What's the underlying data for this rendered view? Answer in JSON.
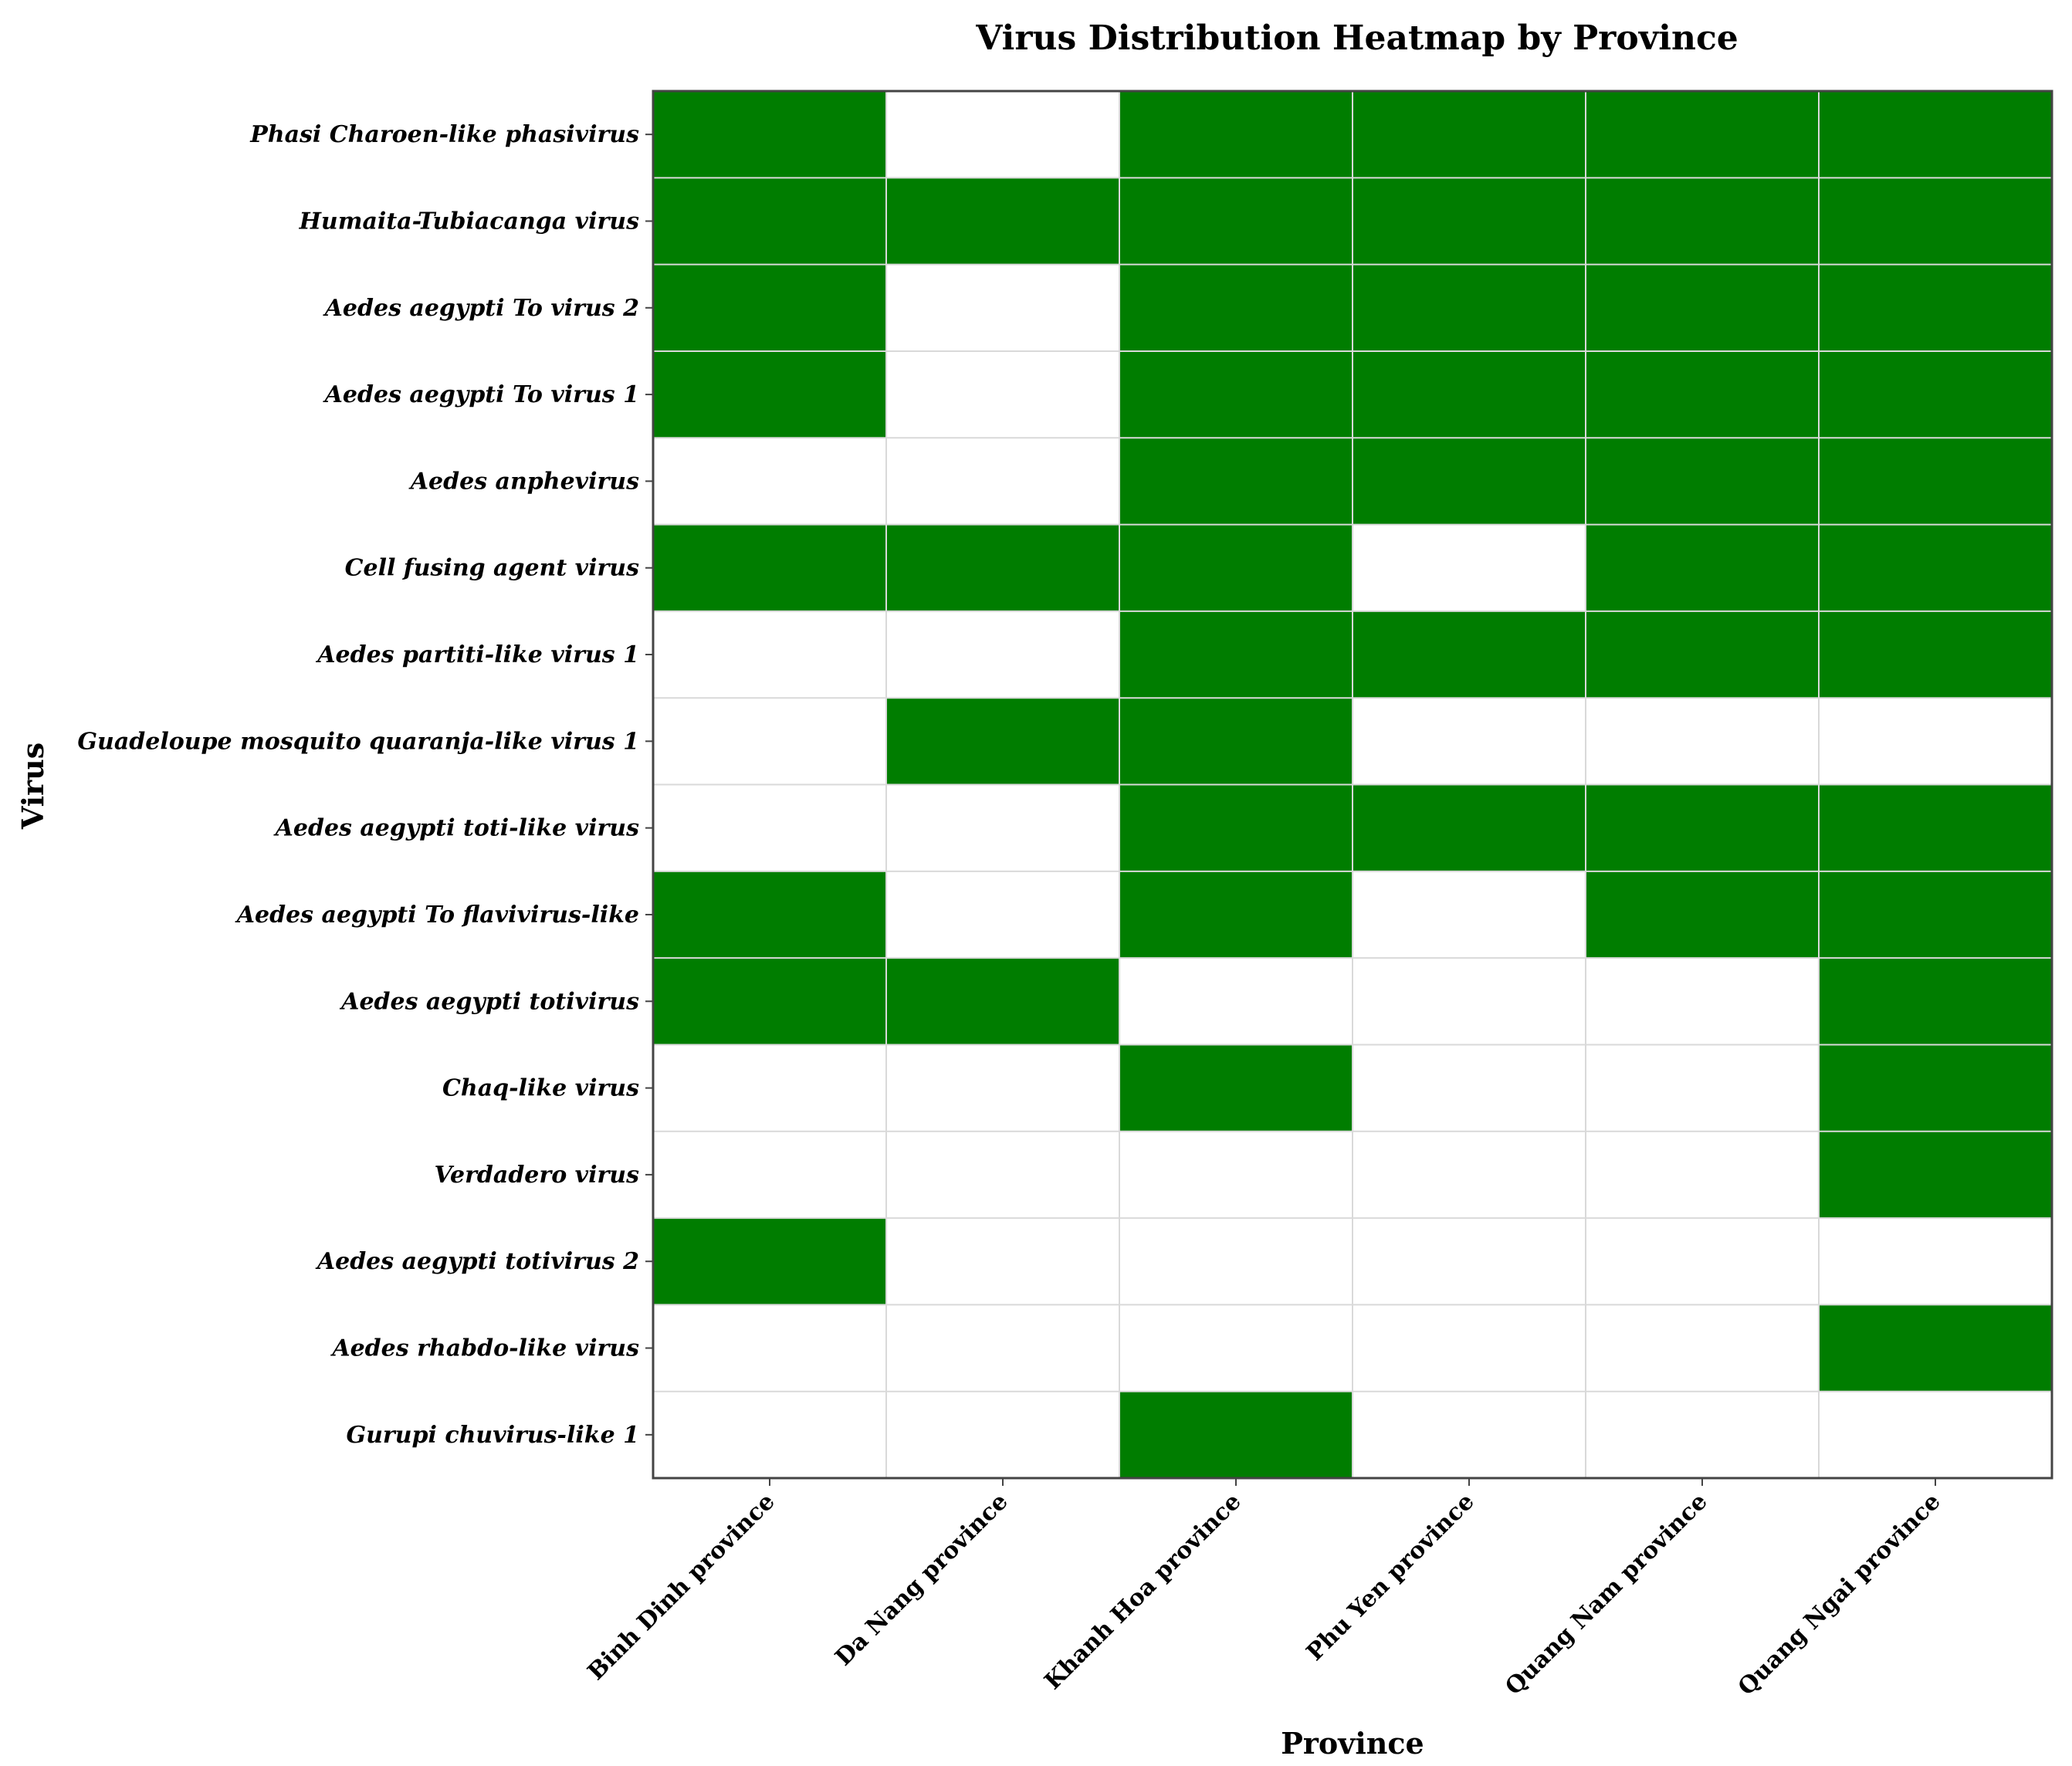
{
  "chart_data": {
    "type": "heatmap",
    "title": "Virus Distribution Heatmap by Province",
    "xlabel": "Province",
    "ylabel": "Virus",
    "x_categories": [
      "Binh Dinh province",
      "Da Nang province",
      "Khanh Hoa province",
      "Phu Yen province",
      "Quang Nam province",
      "Quang Ngai province"
    ],
    "y_categories": [
      "Phasi Charoen-like phasivirus",
      "Humaita-Tubiacanga virus",
      "Aedes aegypti To virus 2",
      "Aedes aegypti To virus 1",
      "Aedes anphevirus",
      "Cell fusing agent virus",
      "Aedes partiti-like virus 1",
      "Guadeloupe mosquito quaranja-like virus 1",
      "Aedes aegypti toti-like virus",
      "Aedes aegypti To flavivirus-like",
      "Aedes aegypti totivirus",
      "Chaq-like virus",
      "Verdadero virus",
      "Aedes aegypti totivirus 2",
      "Aedes rhabdo-like virus",
      "Gurupi chuvirus-like 1"
    ],
    "values": [
      [
        1,
        0,
        1,
        1,
        1,
        1
      ],
      [
        1,
        1,
        1,
        1,
        1,
        1
      ],
      [
        1,
        0,
        1,
        1,
        1,
        1
      ],
      [
        1,
        0,
        1,
        1,
        1,
        1
      ],
      [
        0,
        0,
        1,
        1,
        1,
        1
      ],
      [
        1,
        1,
        1,
        0,
        1,
        1
      ],
      [
        0,
        0,
        1,
        1,
        1,
        1
      ],
      [
        0,
        1,
        1,
        0,
        0,
        0
      ],
      [
        0,
        0,
        1,
        1,
        1,
        1
      ],
      [
        1,
        0,
        1,
        0,
        1,
        1
      ],
      [
        1,
        1,
        0,
        0,
        0,
        1
      ],
      [
        0,
        0,
        1,
        0,
        0,
        1
      ],
      [
        0,
        0,
        0,
        0,
        0,
        1
      ],
      [
        1,
        0,
        0,
        0,
        0,
        0
      ],
      [
        0,
        0,
        0,
        0,
        0,
        1
      ],
      [
        0,
        0,
        1,
        0,
        0,
        0
      ]
    ],
    "colors": {
      "present": "#007d00",
      "absent": "#ffffff",
      "grid": "#d9d9d9",
      "frame": "#444444"
    },
    "grid": true,
    "legend": "none"
  }
}
